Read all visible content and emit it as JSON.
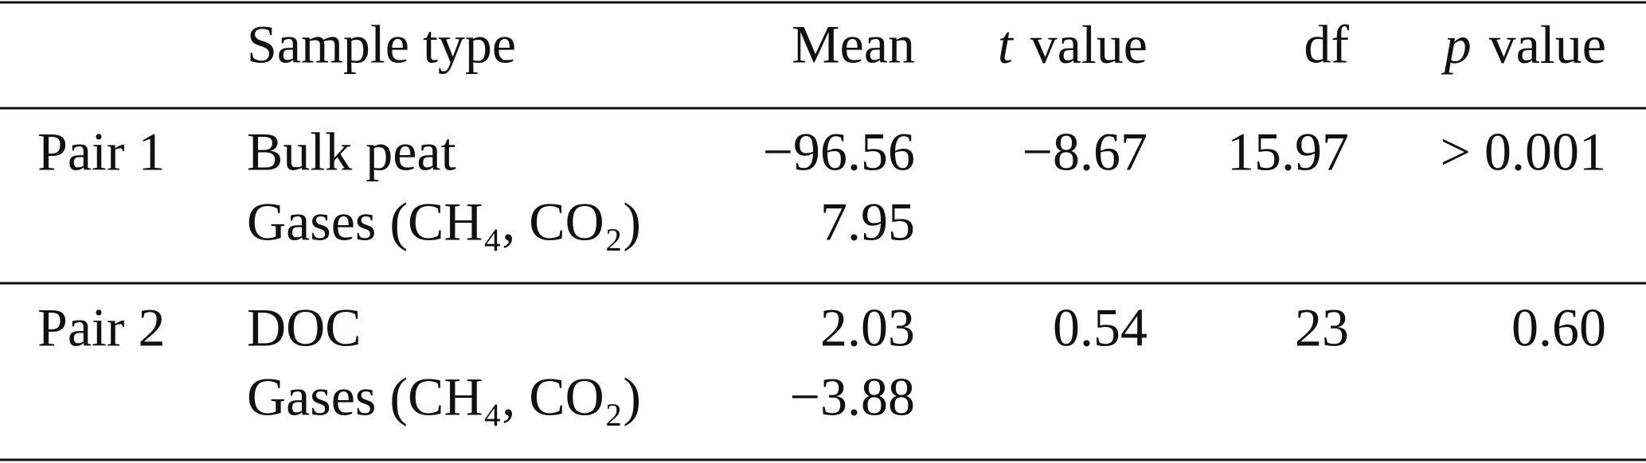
{
  "header": {
    "sample_type": "Sample type",
    "mean": "Mean",
    "t_value": {
      "symbol": "t",
      "text": "value"
    },
    "df": "df",
    "p_value": {
      "symbol": "p",
      "text": "value"
    }
  },
  "rows": [
    {
      "label": "Pair 1",
      "samples": [
        "Bulk peat",
        "Gases (CH₄, CO₂)"
      ],
      "means": [
        "−96.56",
        "7.95"
      ],
      "t_value": "−8.67",
      "df": "15.97",
      "p_value": "> 0.001"
    },
    {
      "label": "Pair 2",
      "samples": [
        "DOC",
        "Gases (CH₄, CO₂)"
      ],
      "means": [
        "2.03",
        "−3.88"
      ],
      "t_value": "0.54",
      "df": "23",
      "p_value": "0.60"
    }
  ]
}
